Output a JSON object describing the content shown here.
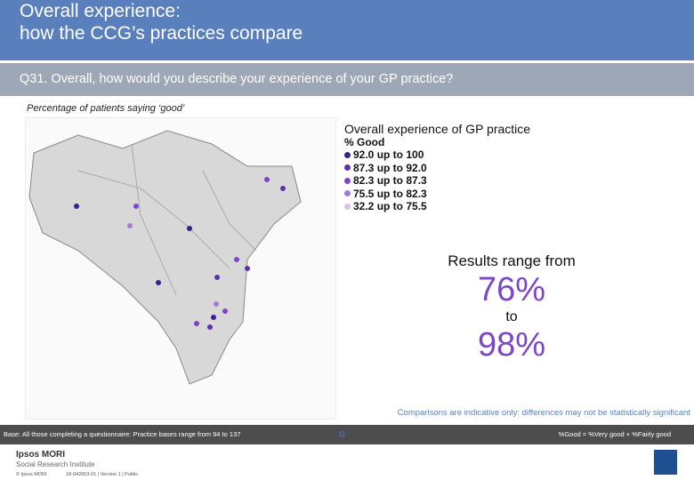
{
  "header": {
    "title_lines": [
      "Overall experience:",
      "how the CCG’s practices compare"
    ]
  },
  "question": "Q31. Overall, how would you describe your experience of your GP practice?",
  "subtitle": "Percentage of patients saying ‘good’",
  "legend": {
    "title": "Overall experience of GP practice",
    "subtitle": "% Good",
    "items": [
      {
        "label": "92.0 up to 100",
        "color": "#3a1f8f"
      },
      {
        "label": "87.3 up to 92.0",
        "color": "#5a31b3"
      },
      {
        "label": "82.3 up to 87.3",
        "color": "#7c45cc"
      },
      {
        "label": "75.5 up to 82.3",
        "color": "#a57ad9"
      },
      {
        "label": "32.2 up to 75.5",
        "color": "#dcc0ec"
      }
    ]
  },
  "results": {
    "intro": "Results range from",
    "low": "76%",
    "to": "to",
    "high": "98%"
  },
  "note": "Comparisons are indicative only: differences may not be statistically significant",
  "footer": {
    "base": "Base: All those completing a questionnaire: Practice bases range from 94 to 137",
    "definition": "%Good = %Very good + %Fairly good",
    "logo_name": "Ipsos MORI",
    "logo_sub": "Social Research Institute",
    "copyright": "© Ipsos MORI",
    "version": "18-042653-01 | Version 1 | Public",
    "page": "11"
  }
}
